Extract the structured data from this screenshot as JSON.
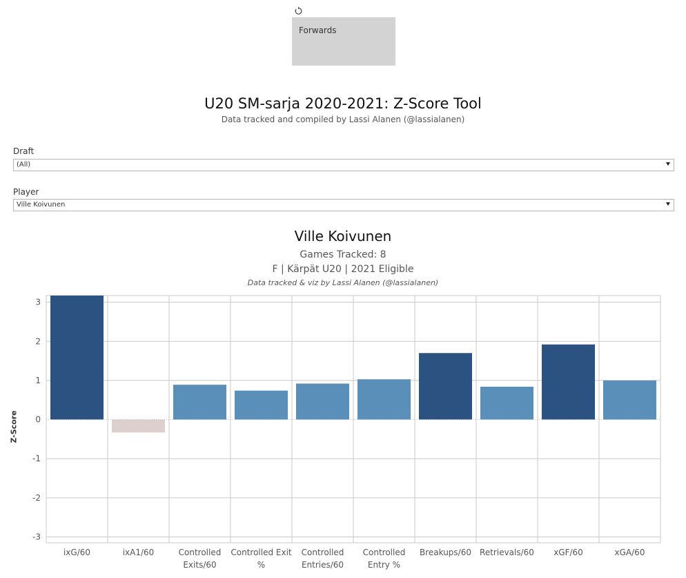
{
  "toolbar": {
    "reset_icon": "revert-icon"
  },
  "tile": {
    "label": "Forwards"
  },
  "header": {
    "title": "U20 SM-sarja 2020-2021: Z-Score Tool",
    "subtitle": "Data tracked and compiled by Lassi Alanen (@lassialanen)"
  },
  "filters": {
    "draft": {
      "label": "Draft",
      "value": "(All)"
    },
    "player": {
      "label": "Player",
      "value": "Ville Koivunen"
    }
  },
  "chart_header": {
    "title": "Ville Koivunen",
    "games": "Games Tracked: 8",
    "info": "F | Kärpät U20 | 2021 Eligible",
    "credit": "Data tracked & viz by Lassi Alanen (@lassialanen)"
  },
  "colors": {
    "dark_blue": "#2c5282",
    "light_blue": "#5a8fba",
    "negative": "#dccfcd",
    "grid": "#c8c8c8"
  },
  "chart_data": {
    "type": "bar",
    "ylabel": "Z-Score",
    "ylim": [
      -3.15,
      3.17
    ],
    "yticks": [
      3,
      2,
      1,
      0,
      -1,
      -2,
      -3
    ],
    "grid": true,
    "categories": [
      [
        "ixG/60"
      ],
      [
        "ixA1/60"
      ],
      [
        "Controlled",
        "Exits/60"
      ],
      [
        "Controlled Exit",
        "%"
      ],
      [
        "Controlled",
        "Entries/60"
      ],
      [
        "Controlled",
        "Entry %"
      ],
      [
        "Breakups/60"
      ],
      [
        "Retrievals/60"
      ],
      [
        "xGF/60"
      ],
      [
        "xGA/60"
      ]
    ],
    "values": [
      3.17,
      -0.33,
      0.89,
      0.74,
      0.92,
      1.03,
      1.7,
      0.84,
      1.92,
      1.0
    ],
    "color_levels": [
      "dark",
      "negative",
      "light",
      "light",
      "light",
      "light",
      "dark",
      "light",
      "dark",
      "light"
    ]
  }
}
